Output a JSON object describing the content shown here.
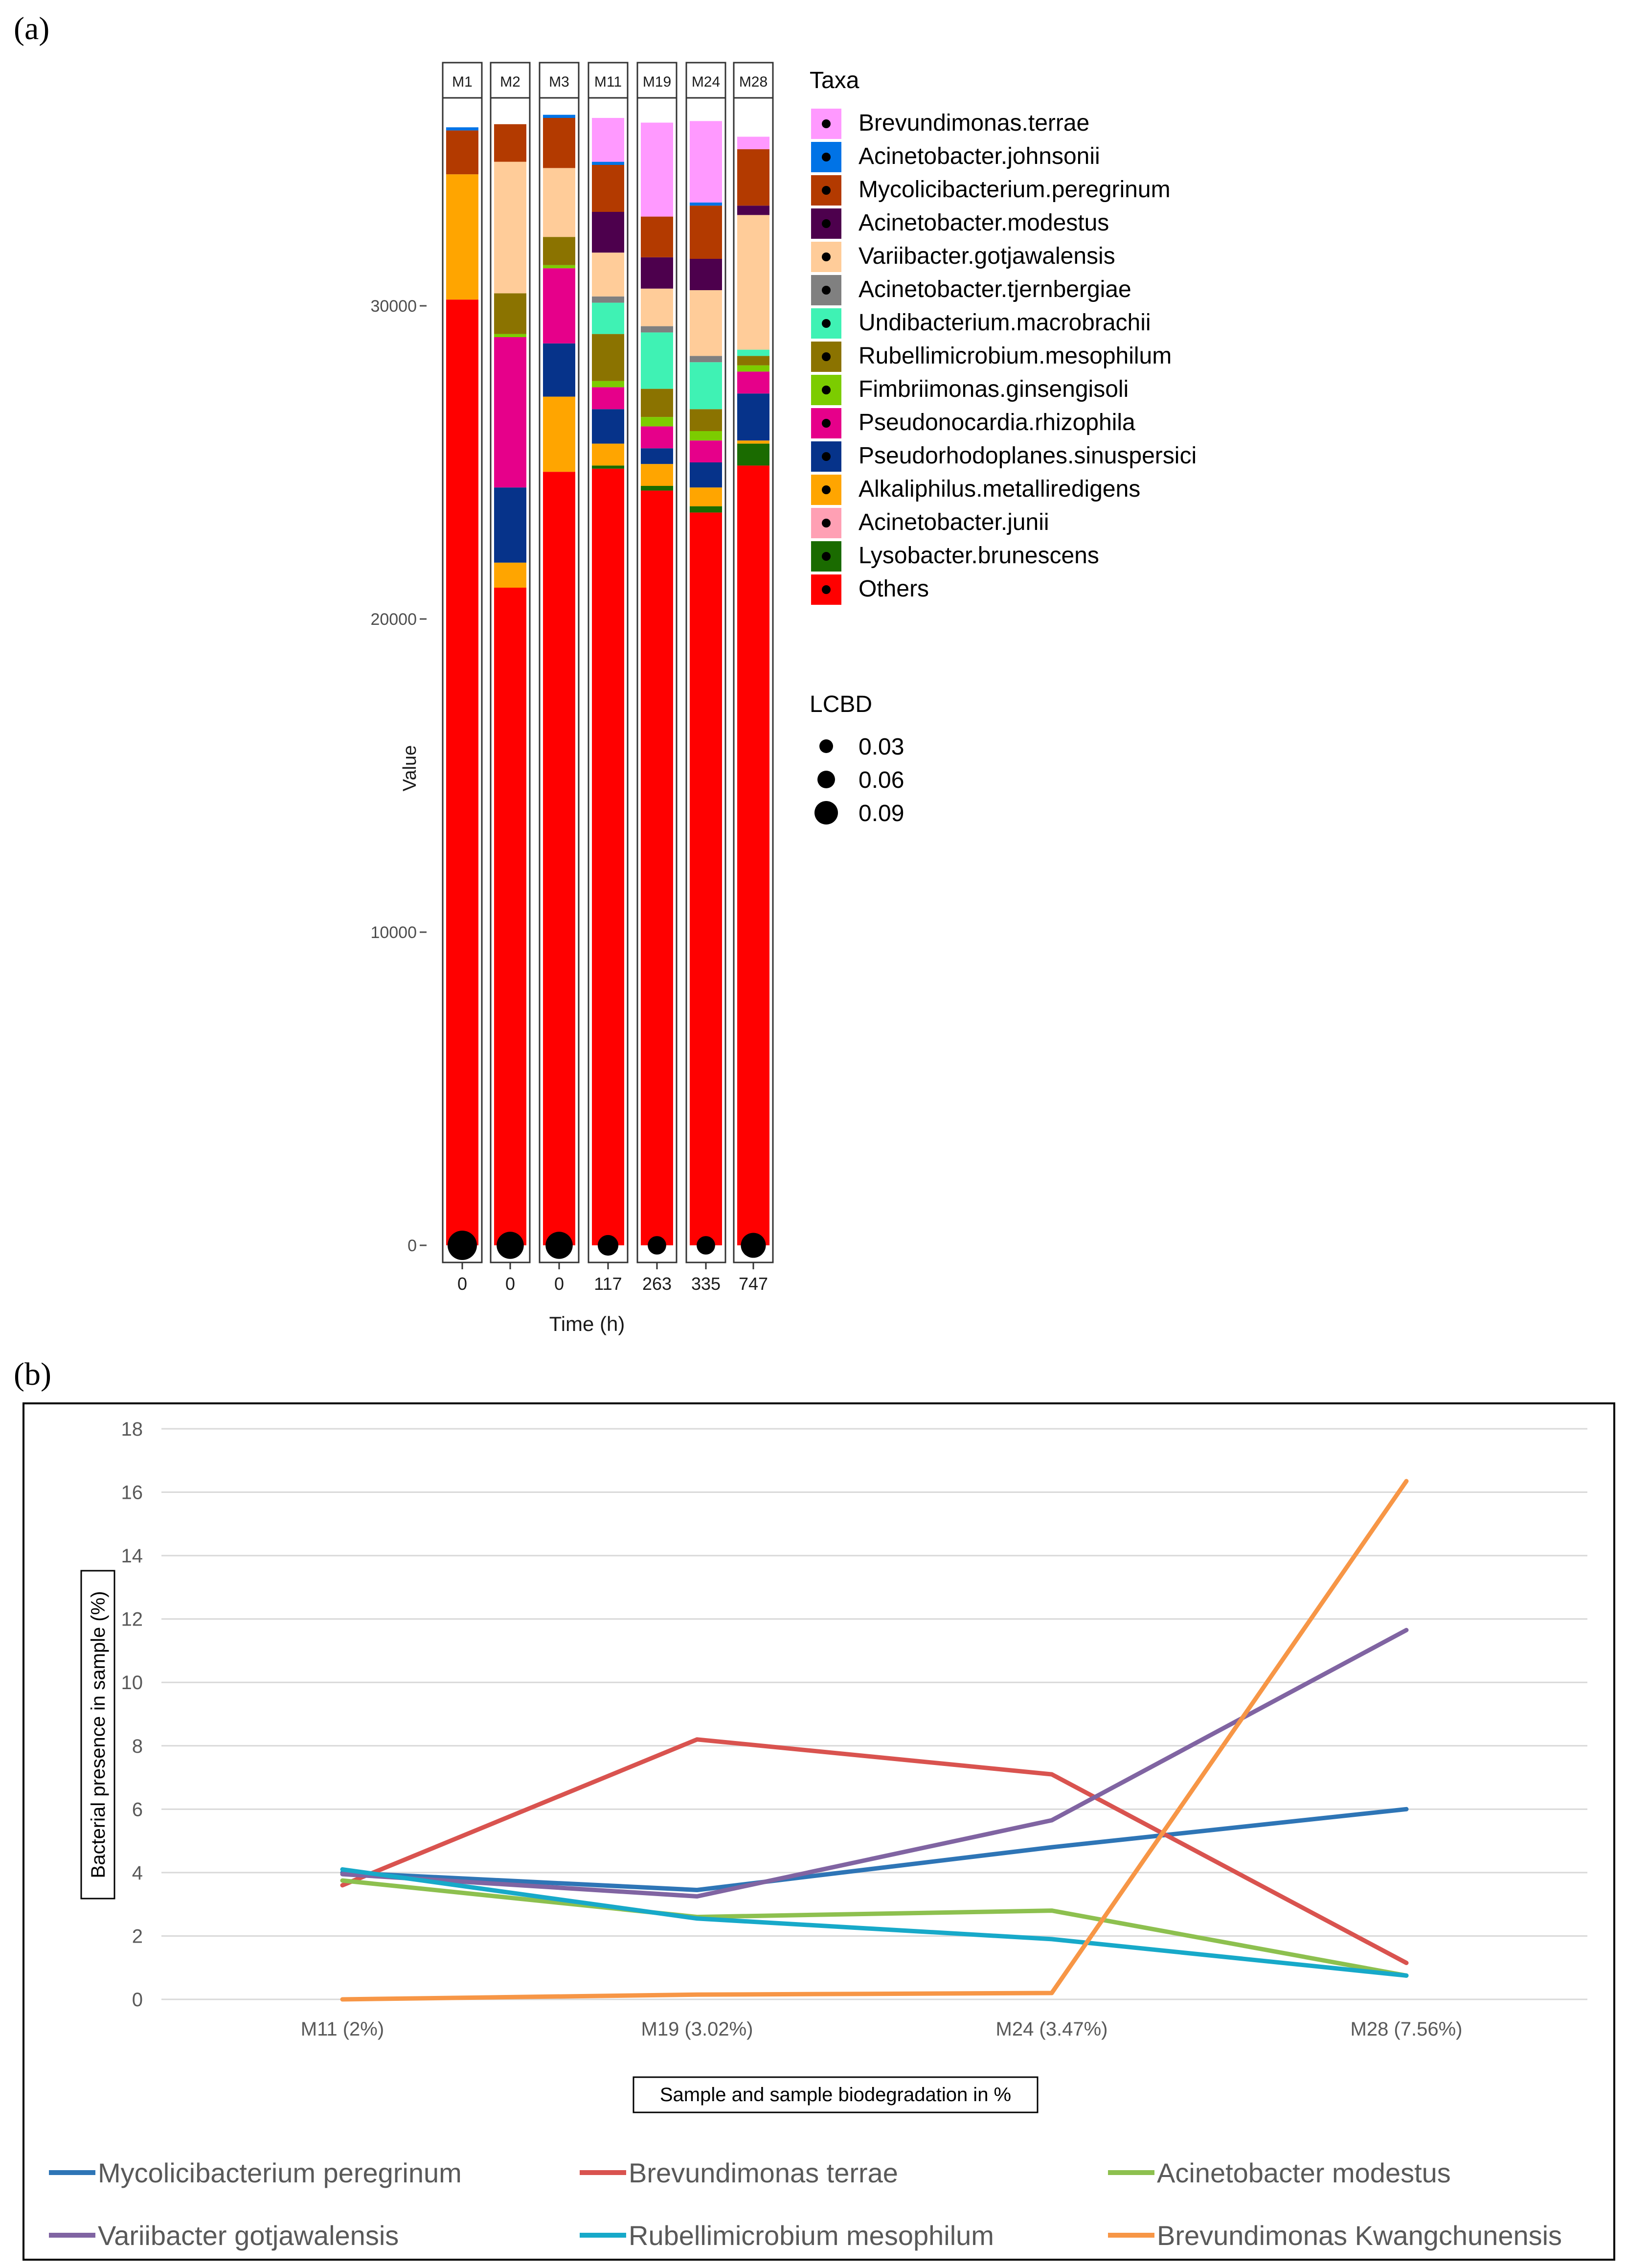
{
  "panels": {
    "a": "(a)",
    "b": "(b)"
  },
  "chart_data": [
    {
      "type": "bar",
      "stacked": true,
      "facets": [
        "M1",
        "M2",
        "M3",
        "M11",
        "M19",
        "M24",
        "M28"
      ],
      "categories": [
        "0",
        "0",
        "0",
        "117",
        "263",
        "335",
        "747"
      ],
      "xlabel": "Time (h)",
      "ylabel": "Value",
      "ylim": [
        0,
        36500
      ],
      "yticks": [
        0,
        10000,
        20000,
        30000
      ],
      "legend_title": "Taxa",
      "legend_position": "right",
      "series": [
        {
          "name": "Others",
          "color": "#ff0000",
          "values": [
            30200,
            21000,
            24700,
            24800,
            24100,
            23400,
            24900
          ]
        },
        {
          "name": "Lysobacter.brunescens",
          "color": "#1a6b00",
          "values": [
            0,
            0,
            0,
            100,
            150,
            200,
            700
          ]
        },
        {
          "name": "Acinetobacter.junii",
          "color": "#ffa0b4",
          "values": [
            0,
            0,
            0,
            0,
            0,
            0,
            0
          ]
        },
        {
          "name": "Alkaliphilus.metalliredigens",
          "color": "#ffa500",
          "values": [
            4000,
            800,
            2400,
            700,
            700,
            600,
            100
          ]
        },
        {
          "name": "Pseudorhodoplanes.sinuspersici",
          "color": "#06338a",
          "values": [
            0,
            2400,
            1700,
            1100,
            500,
            800,
            1500
          ]
        },
        {
          "name": "Pseudonocardia.rhizophila",
          "color": "#e6008a",
          "values": [
            0,
            4800,
            2400,
            700,
            700,
            700,
            700
          ]
        },
        {
          "name": "Fimbriimonas.ginsengisoli",
          "color": "#7ccc00",
          "values": [
            0,
            100,
            100,
            200,
            300,
            300,
            200
          ]
        },
        {
          "name": "Rubellimicrobium.mesophilum",
          "color": "#8b7300",
          "values": [
            0,
            1300,
            900,
            1500,
            900,
            700,
            300
          ]
        },
        {
          "name": "Undibacterium.macrobrachii",
          "color": "#3ff2b4",
          "values": [
            0,
            0,
            0,
            1000,
            1800,
            1500,
            200
          ]
        },
        {
          "name": "Acinetobacter.tjernbergiae",
          "color": "#808080",
          "values": [
            0,
            0,
            0,
            200,
            200,
            200,
            0
          ]
        },
        {
          "name": "Variibacter.gotjawalensis",
          "color": "#ffcc99",
          "values": [
            0,
            4200,
            2200,
            1400,
            1200,
            2100,
            4300
          ]
        },
        {
          "name": "Acinetobacter.modestus",
          "color": "#4d004d",
          "values": [
            0,
            0,
            0,
            1300,
            1000,
            1000,
            300
          ]
        },
        {
          "name": "Mycolicibacterium.peregrinum",
          "color": "#b33a00",
          "values": [
            1400,
            1200,
            1600,
            1500,
            1300,
            1700,
            1800
          ]
        },
        {
          "name": "Acinetobacter.johnsonii",
          "color": "#0073e6",
          "values": [
            100,
            0,
            100,
            100,
            0,
            100,
            0
          ]
        },
        {
          "name": "Brevundimonas.terrae",
          "color": "#ff99ff",
          "values": [
            0,
            0,
            0,
            1400,
            3000,
            2600,
            400
          ]
        }
      ],
      "lcbd": {
        "title": "LCBD",
        "legend": [
          "0.03",
          "0.06",
          "0.09"
        ],
        "values": [
          0.09,
          0.08,
          0.08,
          0.05,
          0.04,
          0.04,
          0.07
        ]
      }
    },
    {
      "type": "line",
      "categories": [
        "M11 (2%)",
        "M19 (3.02%)",
        "M24 (3.47%)",
        "M28 (7.56%)"
      ],
      "xlabel": "Sample and sample biodegradation in %",
      "ylabel": "Bacterial presence in sample (%)",
      "ylim": [
        0,
        18
      ],
      "yticks": [
        0,
        2,
        4,
        6,
        8,
        10,
        12,
        14,
        16,
        18
      ],
      "grid": true,
      "legend_position": "bottom",
      "series": [
        {
          "name": "Mycolicibacterium peregrinum",
          "color": "#2e75b6",
          "values": [
            4.0,
            3.45,
            4.8,
            6.0
          ]
        },
        {
          "name": "Brevundimonas terrae",
          "color": "#d9534f",
          "values": [
            3.6,
            8.2,
            7.1,
            1.15
          ]
        },
        {
          "name": "Acinetobacter modestus",
          "color": "#8dc04f",
          "values": [
            3.75,
            2.6,
            2.8,
            0.75
          ]
        },
        {
          "name": "Variibacter gotjawalensis",
          "color": "#8064a2",
          "values": [
            3.95,
            3.25,
            5.65,
            11.65
          ]
        },
        {
          "name": "Rubellimicrobium mesophilum",
          "color": "#17a9c9",
          "values": [
            4.1,
            2.55,
            1.9,
            0.75
          ]
        },
        {
          "name": "Brevundimonas Kwangchunensis",
          "color": "#f79646",
          "values": [
            0.0,
            0.15,
            0.2,
            16.35
          ]
        }
      ]
    }
  ]
}
